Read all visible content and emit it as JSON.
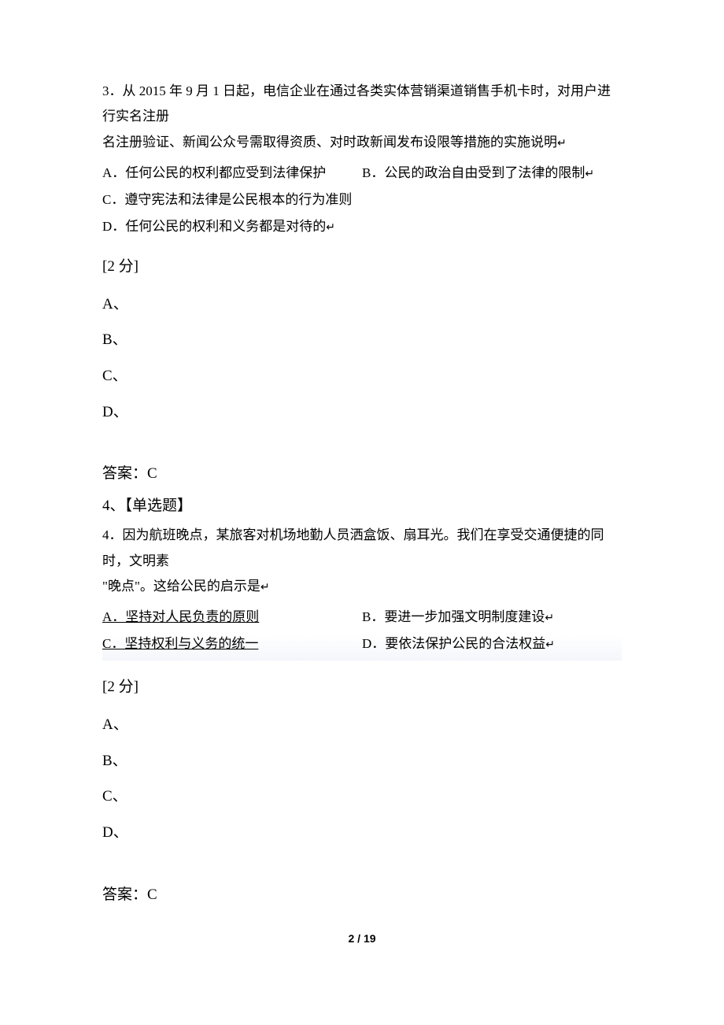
{
  "q3": {
    "text_line1": "3．从 2015 年 9 月 1 日起，电信企业在通过各类实体营销渠道销售手机卡时，对用户进行实名注册",
    "text_line2": "名注册验证、新闻公众号需取得资质、对时政新闻发布设限等措施的实施说明",
    "options": {
      "A": "A．任何公民的权利都应受到法律保护",
      "B": "B．公民的政治自由受到了法律的限制",
      "C": "C．遵守宪法和法律是公民根本的行为准则",
      "D": "D．任何公民的权利和义务都是对待的"
    },
    "score": "[2 分]",
    "choices": [
      "A、",
      "B、",
      "C、",
      "D、"
    ],
    "answer": "答案：C"
  },
  "q4": {
    "label": "4、【单选题】",
    "text_line1": "4．因为航班晚点，某旅客对机场地勤人员洒盒饭、扇耳光。我们在享受交通便捷的同时，文明素",
    "text_line2": "\"晚点\"。这给公民的启示是",
    "options": {
      "A": "A．坚持对人民负责的原则",
      "B": "B．要进一步加强文明制度建设",
      "C": "C．坚持权利与义务的统一",
      "D": "D．要依法保护公民的合法权益"
    },
    "score": "[2 分]",
    "choices": [
      "A、",
      "B、",
      "C、",
      "D、"
    ],
    "answer": "答案：C"
  },
  "return_mark": "↵",
  "page_footer": "2 / 19"
}
